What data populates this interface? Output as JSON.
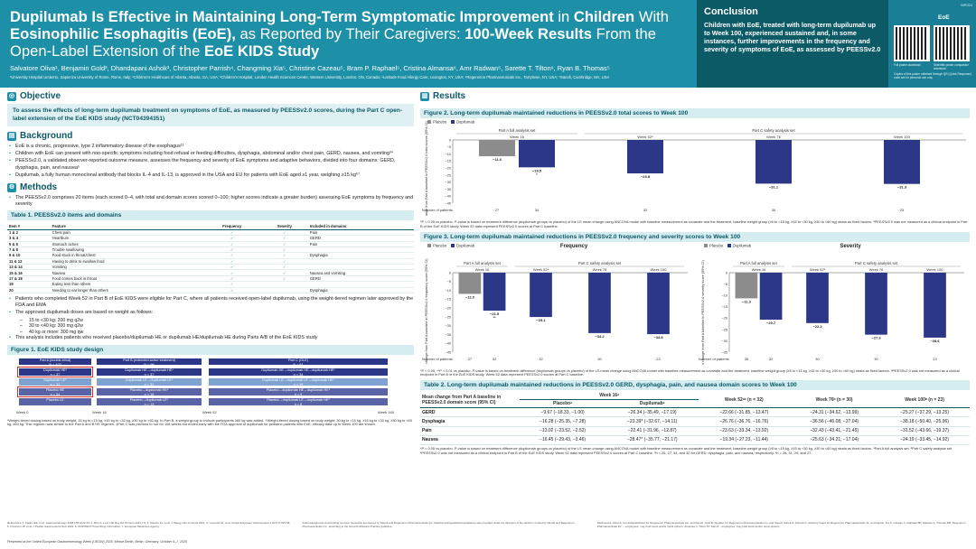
{
  "header": {
    "title_parts": [
      {
        "t": "Dupilumab Is Effective in Maintaining Long-Term Symptomatic Improvement",
        "b": true
      },
      {
        "t": " in ",
        "b": false
      },
      {
        "t": "Children",
        "b": true
      },
      {
        "t": " With ",
        "b": false
      },
      {
        "t": "Eosinophilic Esophagitis (EoE),",
        "b": true
      },
      {
        "t": " as Reported by Their Caregivers: ",
        "b": false
      },
      {
        "t": "100-Week Results",
        "b": true
      },
      {
        "t": " From the Open-Label Extension of the ",
        "b": false
      },
      {
        "t": "EoE KIDS Study",
        "b": true
      }
    ],
    "authors": "Salvatore Oliva¹, Benjamin Gold², Dhandapani Ashok³, Christopher Parrish⁴, Changming Xia⁵, Christine Cazeau⁵, Bram P. Raphael⁵, Cristina Almansa⁶, Amr Radwan⁵, Sarette T. Tilton⁶, Ryan B. Thomas⁵",
    "affiliations": "¹University Hospital Umberto, Sapienza University of Rome, Rome, Italy; ²Children's Healthcare of Atlanta, Atlanta, GA, USA; ³Children's Hospital, London Health Sciences Centre, Western University, London, ON, Canada; ⁴Latitude Food Allergy Care, Lexington, KY, USA; ⁵Regeneron Pharmaceuticals Inc., Tarrytown, NY, USA; ⁶Sanofi, Cambridge, MA, USA"
  },
  "conclusion": {
    "heading": "Conclusion",
    "text": "Children with EoE, treated with long-term dupilumab up to Week 100, experienced sustained and, in some instances, further improvements in the frequency and severity of symptoms of EoE, as assessed by PEESSv2.0"
  },
  "qr": {
    "code": "MP024",
    "label": "EoE",
    "caption1": "Full poster download",
    "caption2": "Scientific poster companion download",
    "note": "Copies of this poster obtained through QR (Quick Response) code are for personal use only"
  },
  "objective": {
    "heading": "Objective",
    "text": "To assess the effects of long-term dupilumab treatment on symptoms of EoE, as measured by PEESSv2.0 scores, during the Part C open-label extension of the EoE KIDS study (NCT04394351)"
  },
  "background": {
    "heading": "Background",
    "bullets": [
      "EoE is a chronic, progressive, type 2 inflammatory disease of the esophagus¹²",
      "Children with EoE can present with non-specific symptoms including food refusal or feeding difficulties, dysphagia, abdominal and/or chest pain, GERD, nausea, and vomiting³⁴",
      "PEESSv2.0, a validated observer-reported outcome measure, assesses the frequency and severity of EoE symptoms and adaptive behaviors, divided into four domains: GERD, dysphagia, pain, and nausea⁵",
      "Dupilumab, a fully human monoclonal antibody that blocks IL-4 and IL-13, is approved in the USA and EU for patients with EoE aged ≥1 year, weighing ≥15 kg⁶⁷"
    ]
  },
  "methods": {
    "heading": "Methods",
    "bullet1": "The PEESSv2.0 comprises 20 items (each scored 0–4, with total and domain scores scored 0–100; higher scores indicate a greater burden) assessing EoE symptoms by frequency and severity",
    "table_title": "Table 1. PEESSv2.0 items and domains",
    "table_headers": [
      "Item #",
      "Feature",
      "Frequency",
      "Severity",
      "Included in domains:"
    ],
    "table_rows": [
      [
        "1 & 2",
        "Chest pain",
        "✓",
        "✓",
        "Pain"
      ],
      [
        "3 & 4",
        "Heartburn",
        "✓",
        "✓",
        "GERD"
      ],
      [
        "5 & 6",
        "Stomach aches",
        "✓",
        "✓",
        "Pain"
      ],
      [
        "7 & 8",
        "Trouble swallowing",
        "✓",
        "✓",
        ""
      ],
      [
        "9 & 10",
        "Food stuck in throat/chest",
        "✓",
        "✓",
        "Dysphagia"
      ],
      [
        "11 & 12",
        "Having to drink to swallow food",
        "✓",
        "✓",
        ""
      ],
      [
        "13 & 14",
        "Vomiting",
        "✓",
        "✓",
        ""
      ],
      [
        "15 & 16",
        "Nausea",
        "✓",
        "✓",
        "Nausea and vomiting"
      ],
      [
        "17 & 18",
        "Food comes back in throat",
        "✓",
        "✓",
        "GERD"
      ],
      [
        "19",
        "Eating less than others",
        "✓",
        "",
        ""
      ],
      [
        "20",
        "Needing to eat longer than others",
        "✓",
        "",
        "Dysphagia"
      ]
    ],
    "bullet2": "Patients who completed Week 52 in Part B of EoE KIDS were eligible for Part C, where all patients received open-label dupilumab, using the weight-tiered regimen later approved by the FDA and EMA",
    "bullet3": "The approved dupilumab doses are based on weight as follows:",
    "doses": [
      "15 to <30 kg: 200 mg q2w",
      "30 to <40 kg: 300 mg q2w",
      "40 kg or more: 300 mg qw"
    ],
    "bullet4": "This analysis includes patients who received placebo/dupilumab HE or dupilumab HE/dupilumab HE during Parts A/B of the EoE KIDS study",
    "fig1_title": "Figure 1. EoE KIDS study design",
    "fig1": {
      "partA": "Part A (double-blind)\nN = 102",
      "partB": "Part B (extended active treatment)\nN = 96",
      "partC": "Part C (OLE)\nN = 81",
      "a_boxes": [
        "Dupilumab HE*\nn = 37",
        "Dupilumab LE*\nn = 31",
        "Placebo HE\nn = 34",
        "Placebo LE"
      ],
      "b_boxes": [
        "Dupilumab HE→dupilumab HE*\nn = 37",
        "Dupilumab LE→dupilumab LE*\nn = 31",
        "Placebo→dupilumab HE*\nn = 16",
        "Placebo→dupilumab LE*\nn = 13"
      ],
      "c_boxes": [
        "Dupilumab HE→dupilumab HE→dupilumab HE*\nn = 34",
        "Dupilumab LE→dupilumab LE→dupilumab HE*\nn = 19",
        "Placebo→dupilumab HE→dupilumab HE*\nn = 9",
        "Placebo→dupilumab LE→dupilumab HE*\nn = 8"
      ],
      "timeline": [
        "Week 0",
        "Week 16",
        "Week 52",
        "Week 160"
      ]
    },
    "fig1_foot": "*Weight-tiered dosing based on body weight; 15 kg to <15 kg, ≥15 kg to <30 kg, ≥30 kg to <60 kg. In Part B, a weight group to include participants ≥60 kg was added. †Weight-tiered dosing based on body weight; 30 kg to <15 kg, ≥15 kg to <30 kg, ≥30 kg to <60 kg, ≥60 kg. This regimen was similar to the Part A and B HE regimen. ‡Part C was planned to run for 108 weeks but ended early with the FDA approval of dupilumab for pediatric patients with EoE; efficacy data up to Week 100 are shown."
  },
  "results": {
    "heading": "Results"
  },
  "fig2": {
    "title": "Figure 2. Long-term dupilumab maintained reductions in PEESSv2.0 total scores to Week 100",
    "foot": "*P < 0.05 vs placebo. P-value is based on treatment difference (dupilumab groups vs placebo) of the LS mean change using ANCOVA model with baseline measurement as covariate and the treatment, baseline weight group (≥5 to <15 kg, ≥15 to <30 kg, ≥30 to <60 kg) strata as fixed factors. ᵃPEESSv2.0 was not measured as a clinical endpoint in Part B of the EoE KIDS study. Week 52 data represent PEESSv2.0 scores at Part C baseline."
  },
  "fig3": {
    "title": "Figure 3. Long-term dupilumab maintained reductions in PEESSv2.0 frequency and severity scores to Week 100",
    "foot": "*P < 0.05, **P < 0.01 vs placebo. P-value is based on treatment difference (dupilumab groups vs placebo) of the LS mean change using ANCOVA model with baseline measurement as covariate and the treatment, baseline weight group (≥5 to <15 kg, ≥15 to <30 kg, ≥30 to <60 kg) strata as fixed factors. ᵃPEESSv2.0 was not measured as a clinical endpoint in Part B of the EoE KIDS study. Week 52 data represent PEESSv2.0 scores at Part C baseline."
  },
  "table2": {
    "title": "Table 2. Long-term dupilumab maintained reductions in PEESSv2.0 GERD, dysphagia, pain, and nausea domain scores to Week 100",
    "col0": "Mean change from Part A baseline in PEESSv2.0 domain score (95% CI)",
    "week_headers": [
      "Week 16ᵃ",
      "Week 52ᵃᵇ (n = 32)",
      "Week 76ᵇ (n = 30)",
      "Week 100ᵇ (n = 23)"
    ],
    "sub_headers": [
      "Placeboᵃ",
      "Dupilumabᵃ"
    ],
    "rows": [
      [
        "GERD",
        "−9.67 (−18.33, −1.00)",
        "−26.34 (−35.49, −17.19)",
        "−22.66 (−31.85, −13.47)",
        "−24.31 (−34.62, −13.99)",
        "−25.27 (−37.29, −13.25)"
      ],
      [
        "Dysphagia",
        "−16.28 (−25.35, −7.28)",
        "−23.39* (−32.67, −14.11)",
        "−26.76 (−36.76, −16.76)",
        "−36.56 (−46.08, −27.04)",
        "−38.18 (−50.40, −25.96)"
      ],
      [
        "Pain",
        "−13.02 (−23.52, −2.52)",
        "−22.41 (−31.96, −12.87)",
        "−23.63 (−33.34, −13.92)",
        "−32.43 (−43.41, −21.45)",
        "−31.52 (−43.66, −19.37)"
      ],
      [
        "Nausea",
        "−16.45 (−29.43, −3.46)",
        "−28.47* (−35.77, −21.17)",
        "−19.34 (−27.23, −11.44)",
        "−25.63 (−34.21, −17.04)",
        "−24.19 (−33.45, −14.92)"
      ]
    ],
    "foot": "*P < 0.05 vs placebo. P-value is based on treatment difference (dupilumab groups vs placebo) of the LS mean change using ANCOVA model with baseline measurement as covariate and the treatment, baseline weight group (≥5 to <15 kg, ≥15 to <30 kg, ≥30 to <60 kg) strata as fixed factors. ᵃPart A full analysis set. ᵇPart C safety analysis set. ᶜPEESSv2.0 was not measured as a clinical endpoint in Part B of the EoE KIDS study. Week 52 data represent PEESSv2.0 scores at Part C baseline. ᵈn = 26, 27, 34, and 32 for GERD, dysphagia, pain, and nausea, respectively. ᵉn = 28, 31, 29, and 27."
  },
  "bottom": {
    "refs": "References: 1. Dellon ES, et al. Gastroenterology 2018;155:1022-33. 2. Muir A, et al. Nat Rev Dis Primers 2021;7:5. 3. Kliewer KL, et al. J Allergy Clin Immunol 2021. 4. Lucendo AJ, et al. United European Gastroenterol J 2017;5:335-58. 5. Franciosi JP, et al. J Pediatr Gastroenterol Nutr 2022. 6. DUPIXENT Prescribing Information. 7. European Medicines Agency.",
    "ack": "Acknowledgments and funding sources: Research sponsored by Sanofi and Regeneron Pharmaceuticals Inc. Medical writing/editorial assistance was provided under the direction of the authors, funded by Sanofi and Regeneron Pharmaceuticals Inc., according to the Good Publication Practice guideline.",
    "disc": "Disclosures: Oliva S: Consultant/advisor for Regeneron Pharmaceuticals Inc. and Sanofi. Gold B: Speaker for Regeneron Pharmaceuticals Inc. and Sanofi. Ashok D, Parrish C: Advisory board for Regeneron Pharmaceuticals Inc. and Sanofi. Xia C, Cazeau C, Raphael BP, Radwan A, Thomas RB: Regeneron Pharmaceuticals Inc. – employees, may hold stock and/or stock options. Almansa C, Tilton ST: Sanofi – employees, may hold stock and/or stock options.",
    "abbr": "ANCOVA, analysis of covariance; CI, confidence interval; EMA, European Medicines Agency; EoE, eosinophilic esophagitis; EU, European Union; FDA, US Food and Drug Administration; GERD, gastroesophageal reflux disease; HE, higher exposure; IL, interleukin; LE, lower exposure; LS, least squares; OLE, open-label extension; PEESSv2.0, Pediatric Eosinophilic Esophagitis Symptom Score version 2.0; q2w, every 2 weeks; qw, every week.",
    "presented": "Presented at the United European Gastroenterology Week (UEGW) 2025; Messe Berlin, Berlin, Germany; October 4–7, 2025"
  },
  "chart_data": [
    {
      "type": "bar",
      "name": "Figure 2",
      "ylabel": "Mean change from Part A baseline in PEESSv2.0 total scores (95% CI)",
      "ylim": [
        -45,
        0
      ],
      "yticks": [
        0,
        -5,
        -10,
        -15,
        -20,
        -25,
        -30,
        -35,
        -40,
        -45
      ],
      "legend": [
        "Placebo",
        "Dupilumab"
      ],
      "groups": [
        {
          "label": "Part A full analysis set",
          "weeks": [
            "Week 16"
          ]
        },
        {
          "label": "Part C safety analysis set",
          "weeks": [
            "Week 52ᵃ",
            "Week 76",
            "Week 100"
          ]
        }
      ],
      "bars": [
        {
          "week": "Week 16",
          "series": "Placebo",
          "value": -11.6,
          "label": "−11.6",
          "n": "27"
        },
        {
          "week": "Week 16",
          "series": "Dupilumab",
          "value": -19.5,
          "label": "−19.5\n*",
          "n": "34"
        },
        {
          "week": "Week 52ᵃ",
          "series": "Dupilumab",
          "value": -23.8,
          "label": "−23.8",
          "n": "32"
        },
        {
          "week": "Week 76",
          "series": "Dupilumab",
          "value": -31.1,
          "label": "−31.1",
          "n": "30"
        },
        {
          "week": "Week 100",
          "series": "Dupilumab",
          "value": -31.3,
          "label": "−31.3",
          "n": "23"
        }
      ],
      "npatients_label": "Number of patients"
    },
    {
      "type": "bar",
      "name": "Frequency",
      "ylabel": "Mean change from Part A baseline in PEESSv2.0 frequency score (95% CI)",
      "ylim": [
        -45,
        0
      ],
      "yticks": [
        0,
        -5,
        -10,
        -15,
        -20,
        -25,
        -30,
        -35,
        -40,
        -45
      ],
      "legend": [
        "Placebo",
        "Dupilumab"
      ],
      "groups": [
        {
          "label": "Part A full analysis set",
          "weeks": [
            "Week 16"
          ]
        },
        {
          "label": "Part C safety analysis set",
          "weeks": [
            "Week 52ᵃ",
            "Week 76",
            "Week 100"
          ]
        }
      ],
      "bars": [
        {
          "week": "Week 16",
          "series": "Placebo",
          "value": -12.0,
          "label": "−12.0",
          "n": "27"
        },
        {
          "week": "Week 16",
          "series": "Dupilumab",
          "value": -21.5,
          "label": "−21.5\n**",
          "n": "32"
        },
        {
          "week": "Week 52ᵃ",
          "series": "Dupilumab",
          "value": -25.1,
          "label": "−25.1",
          "n": "32"
        },
        {
          "week": "Week 76",
          "series": "Dupilumab",
          "value": -34.2,
          "label": "−34.2",
          "n": "30"
        },
        {
          "week": "Week 100",
          "series": "Dupilumab",
          "value": -34.8,
          "label": "−34.8",
          "n": "23"
        }
      ],
      "npatients_label": "Number of patients"
    },
    {
      "type": "bar",
      "name": "Severity",
      "ylabel": "Mean change from Part A baseline in PEESSv2.0 severity score (95% CI)",
      "ylim": [
        -35,
        0
      ],
      "yticks": [
        0,
        -5,
        -10,
        -15,
        -20,
        -25,
        -30,
        -35
      ],
      "legend": [
        "Placebo",
        "Dupilumab"
      ],
      "groups": [
        {
          "label": "Part A full analysis set",
          "weeks": [
            "Week 16"
          ]
        },
        {
          "label": "Part C safety analysis set",
          "weeks": [
            "Week 52ᵃ",
            "Week 76",
            "Week 100"
          ]
        }
      ],
      "bars": [
        {
          "week": "Week 16",
          "series": "Placebo",
          "value": -11.3,
          "label": "−11.3",
          "n": "26"
        },
        {
          "week": "Week 16",
          "series": "Dupilumab",
          "value": -20.7,
          "label": "−20.7",
          "n": "32"
        },
        {
          "week": "Week 52ᵃ",
          "series": "Dupilumab",
          "value": -22.2,
          "label": "−22.2",
          "n": "30"
        },
        {
          "week": "Week 76",
          "series": "Dupilumab",
          "value": -27.3,
          "label": "−27.3",
          "n": "30"
        },
        {
          "week": "Week 100",
          "series": "Dupilumab",
          "value": -28.6,
          "label": "−28.6",
          "n": "23"
        }
      ],
      "npatients_label": "Number of patients"
    }
  ],
  "colors": {
    "teal": "#1d8fa7",
    "dark_teal": "#0c5a66",
    "placebo": "#8c8c8c",
    "dupilumab": "#2c3788"
  }
}
